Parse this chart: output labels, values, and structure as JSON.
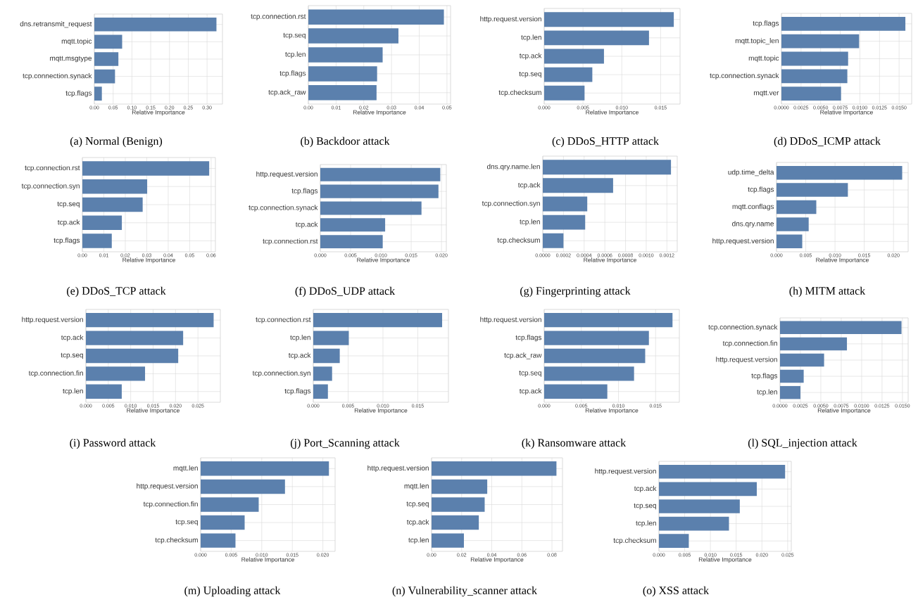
{
  "chart_data": [
    {
      "type": "bar",
      "orientation": "horizontal",
      "title": "(a) Normal (Benign)",
      "xlabel": "Relative Importance",
      "color": "#5b80ad",
      "grid": true,
      "categories": [
        "dns.retransmit_request",
        "mqtt.topic",
        "mqtt.msgtype",
        "tcp.connection.synack",
        "tcp.flags"
      ],
      "values": [
        0.325,
        0.074,
        0.064,
        0.055,
        0.02
      ],
      "xlim": [
        0,
        0.341
      ],
      "xticks": [
        {
          "value": 0,
          "label": "0.00"
        },
        {
          "value": 0.05,
          "label": "0.05"
        },
        {
          "value": 0.1,
          "label": "0.10"
        },
        {
          "value": 0.15,
          "label": "0.15"
        },
        {
          "value": 0.2,
          "label": "0.20"
        },
        {
          "value": 0.25,
          "label": "0.25"
        },
        {
          "value": 0.3,
          "label": "0.30"
        }
      ]
    },
    {
      "type": "bar",
      "orientation": "horizontal",
      "title": "(b) Backdoor attack",
      "xlabel": "Relative Importance",
      "color": "#5b80ad",
      "grid": true,
      "categories": [
        "tcp.connection.rst",
        "tcp.seq",
        "tcp.len",
        "tcp.flags",
        "tcp.ack_raw"
      ],
      "values": [
        0.0489,
        0.0325,
        0.0268,
        0.0248,
        0.0246
      ],
      "xlim": [
        0,
        0.0513
      ],
      "xticks": [
        {
          "value": 0,
          "label": "0.00"
        },
        {
          "value": 0.01,
          "label": "0.01"
        },
        {
          "value": 0.02,
          "label": "0.02"
        },
        {
          "value": 0.03,
          "label": "0.03"
        },
        {
          "value": 0.04,
          "label": "0.04"
        },
        {
          "value": 0.05,
          "label": "0.05"
        }
      ]
    },
    {
      "type": "bar",
      "orientation": "horizontal",
      "title": "(c) DDoS_HTTP attack",
      "xlabel": "Relative Importance",
      "color": "#5b80ad",
      "grid": true,
      "categories": [
        "http.request.version",
        "tcp.len",
        "tcp.ack",
        "tcp.seq",
        "tcp.checksum"
      ],
      "values": [
        0.0167,
        0.0135,
        0.0077,
        0.0062,
        0.0052
      ],
      "xlim": [
        0,
        0.0175
      ],
      "xticks": [
        {
          "value": 0,
          "label": "0.000"
        },
        {
          "value": 0.005,
          "label": "0.005"
        },
        {
          "value": 0.01,
          "label": "0.010"
        },
        {
          "value": 0.015,
          "label": "0.015"
        }
      ]
    },
    {
      "type": "bar",
      "orientation": "horizontal",
      "title": "(d) DDoS_ICMP attack",
      "xlabel": "Relative Importance",
      "color": "#5b80ad",
      "grid": true,
      "categories": [
        "tcp.flags",
        "mqtt.topic_len",
        "mqtt.topic",
        "tcp.connection.synack",
        "mqtt.ver"
      ],
      "values": [
        0.0158,
        0.0099,
        0.0085,
        0.0084,
        0.0076
      ],
      "xlim": [
        0,
        0.0166
      ],
      "xticks": [
        {
          "value": 0,
          "label": "0.0000"
        },
        {
          "value": 0.0025,
          "label": "0.0025"
        },
        {
          "value": 0.005,
          "label": "0.0050"
        },
        {
          "value": 0.0075,
          "label": "0.0075"
        },
        {
          "value": 0.01,
          "label": "0.0100"
        },
        {
          "value": 0.0125,
          "label": "0.0125"
        },
        {
          "value": 0.015,
          "label": "0.0150"
        }
      ]
    },
    {
      "type": "bar",
      "orientation": "horizontal",
      "title": "(e) DDoS_TCP attack",
      "xlabel": "Relative Importance",
      "color": "#5b80ad",
      "grid": true,
      "categories": [
        "tcp.connection.rst",
        "tcp.connection.syn",
        "tcp.seq",
        "tcp.ack",
        "tcp.flags"
      ],
      "values": [
        0.0591,
        0.0302,
        0.0281,
        0.0184,
        0.0137
      ],
      "xlim": [
        0,
        0.062
      ],
      "xticks": [
        {
          "value": 0,
          "label": "0.00"
        },
        {
          "value": 0.01,
          "label": "0.01"
        },
        {
          "value": 0.02,
          "label": "0.02"
        },
        {
          "value": 0.03,
          "label": "0.03"
        },
        {
          "value": 0.04,
          "label": "0.04"
        },
        {
          "value": 0.05,
          "label": "0.05"
        },
        {
          "value": 0.06,
          "label": "0.06"
        }
      ]
    },
    {
      "type": "bar",
      "orientation": "horizontal",
      "title": "(f) DDoS_UDP attack",
      "xlabel": "Relative Importance",
      "color": "#5b80ad",
      "grid": true,
      "categories": [
        "http.request.version",
        "tcp.flags",
        "tcp.connection.synack",
        "tcp.ack",
        "tcp.connection.rst"
      ],
      "values": [
        0.0198,
        0.0195,
        0.0167,
        0.0107,
        0.0103
      ],
      "xlim": [
        0,
        0.0208
      ],
      "xticks": [
        {
          "value": 0,
          "label": "0.000"
        },
        {
          "value": 0.005,
          "label": "0.005"
        },
        {
          "value": 0.01,
          "label": "0.010"
        },
        {
          "value": 0.015,
          "label": "0.015"
        },
        {
          "value": 0.02,
          "label": "0.020"
        }
      ]
    },
    {
      "type": "bar",
      "orientation": "horizontal",
      "title": "(g) Fingerprinting attack",
      "xlabel": "Relative Importance",
      "color": "#5b80ad",
      "grid": true,
      "categories": [
        "dns.qry.name.len",
        "tcp.ack",
        "tcp.connection.syn",
        "tcp.len",
        "tcp.checksum"
      ],
      "values": [
        0.00124,
        0.00068,
        0.00043,
        0.00041,
        0.0002
      ],
      "xlim": [
        0,
        0.0013
      ],
      "xticks": [
        {
          "value": 0,
          "label": "0.0000"
        },
        {
          "value": 0.0002,
          "label": "0.0002"
        },
        {
          "value": 0.0004,
          "label": "0.0004"
        },
        {
          "value": 0.0006,
          "label": "0.0006"
        },
        {
          "value": 0.0008,
          "label": "0.0008"
        },
        {
          "value": 0.001,
          "label": "0.0010"
        },
        {
          "value": 0.0012,
          "label": "0.0012"
        }
      ]
    },
    {
      "type": "bar",
      "orientation": "horizontal",
      "title": "(h) MITM attack",
      "xlabel": "Relative Importance",
      "color": "#5b80ad",
      "grid": true,
      "categories": [
        "udp.time_delta",
        "tcp.flags",
        "mqtt.conflags",
        "dns.qry.name",
        "http.request.version"
      ],
      "values": [
        0.0215,
        0.0122,
        0.0068,
        0.0055,
        0.0044
      ],
      "xlim": [
        0,
        0.0225
      ],
      "xticks": [
        {
          "value": 0,
          "label": "0.000"
        },
        {
          "value": 0.005,
          "label": "0.005"
        },
        {
          "value": 0.01,
          "label": "0.010"
        },
        {
          "value": 0.015,
          "label": "0.015"
        },
        {
          "value": 0.02,
          "label": "0.020"
        }
      ]
    },
    {
      "type": "bar",
      "orientation": "horizontal",
      "title": "(i) Password attack",
      "xlabel": "Relative Importance",
      "color": "#5b80ad",
      "grid": true,
      "categories": [
        "http.request.version",
        "tcp.ack",
        "tcp.seq",
        "tcp.connection.fin",
        "tcp.len"
      ],
      "values": [
        0.0285,
        0.0217,
        0.0206,
        0.0132,
        0.008
      ],
      "xlim": [
        0,
        0.03
      ],
      "xticks": [
        {
          "value": 0,
          "label": "0.000"
        },
        {
          "value": 0.005,
          "label": "0.005"
        },
        {
          "value": 0.01,
          "label": "0.010"
        },
        {
          "value": 0.015,
          "label": "0.015"
        },
        {
          "value": 0.02,
          "label": "0.020"
        },
        {
          "value": 0.025,
          "label": "0.025"
        }
      ]
    },
    {
      "type": "bar",
      "orientation": "horizontal",
      "title": "(j) Port_Scanning attack",
      "xlabel": "Relative Importance",
      "color": "#5b80ad",
      "grid": true,
      "categories": [
        "tcp.connection.rst",
        "tcp.len",
        "tcp.ack",
        "tcp.connection.syn",
        "tcp.flags"
      ],
      "values": [
        0.0185,
        0.0051,
        0.0038,
        0.0027,
        0.0021
      ],
      "xlim": [
        0,
        0.0194
      ],
      "xticks": [
        {
          "value": 0,
          "label": "0.000"
        },
        {
          "value": 0.005,
          "label": "0.005"
        },
        {
          "value": 0.01,
          "label": "0.010"
        },
        {
          "value": 0.015,
          "label": "0.015"
        }
      ]
    },
    {
      "type": "bar",
      "orientation": "horizontal",
      "title": "(k) Ransomware attack",
      "xlabel": "Relative Importance",
      "color": "#5b80ad",
      "grid": true,
      "categories": [
        "http.request.version",
        "tcp.flags",
        "tcp.ack_raw",
        "tcp.seq",
        "tcp.ack"
      ],
      "values": [
        0.0173,
        0.0141,
        0.0136,
        0.0121,
        0.0085
      ],
      "xlim": [
        0,
        0.0182
      ],
      "xticks": [
        {
          "value": 0,
          "label": "0.000"
        },
        {
          "value": 0.005,
          "label": "0.005"
        },
        {
          "value": 0.01,
          "label": "0.010"
        },
        {
          "value": 0.015,
          "label": "0.015"
        }
      ]
    },
    {
      "type": "bar",
      "orientation": "horizontal",
      "title": "(l) SQL_injection attack",
      "xlabel": "Relative Importance",
      "color": "#5b80ad",
      "grid": true,
      "categories": [
        "tcp.connection.synack",
        "tcp.connection.fin",
        "http.request.version",
        "tcp.flags",
        "tcp.len"
      ],
      "values": [
        0.0149,
        0.0082,
        0.0054,
        0.0029,
        0.0025
      ],
      "xlim": [
        0,
        0.0157
      ],
      "xticks": [
        {
          "value": 0,
          "label": "0.0000"
        },
        {
          "value": 0.0025,
          "label": "0.0025"
        },
        {
          "value": 0.005,
          "label": "0.0050"
        },
        {
          "value": 0.0075,
          "label": "0.0075"
        },
        {
          "value": 0.01,
          "label": "0.0100"
        },
        {
          "value": 0.0125,
          "label": "0.0125"
        },
        {
          "value": 0.015,
          "label": "0.0150"
        }
      ]
    },
    {
      "type": "bar",
      "orientation": "horizontal",
      "title": "(m) Uploading attack",
      "xlabel": "Relative Importance",
      "color": "#5b80ad",
      "grid": true,
      "categories": [
        "mqtt.len",
        "http.request.version",
        "tcp.connection.fin",
        "tcp.seq",
        "tcp.checksum"
      ],
      "values": [
        0.021,
        0.0138,
        0.0095,
        0.0072,
        0.0057
      ],
      "xlim": [
        0,
        0.022
      ],
      "xticks": [
        {
          "value": 0,
          "label": "0.000"
        },
        {
          "value": 0.005,
          "label": "0.005"
        },
        {
          "value": 0.01,
          "label": "0.010"
        },
        {
          "value": 0.015,
          "label": "0.015"
        },
        {
          "value": 0.02,
          "label": "0.020"
        }
      ]
    },
    {
      "type": "bar",
      "orientation": "horizontal",
      "title": "(n) Vulnerability_scanner attack",
      "xlabel": "Relative Importance",
      "color": "#5b80ad",
      "grid": true,
      "categories": [
        "http.request.version",
        "mqtt.len",
        "tcp.seq",
        "tcp.ack",
        "tcp.len"
      ],
      "values": [
        0.083,
        0.037,
        0.0353,
        0.0314,
        0.0215
      ],
      "xlim": [
        0,
        0.087
      ],
      "xticks": [
        {
          "value": 0,
          "label": "0.00"
        },
        {
          "value": 0.02,
          "label": "0.02"
        },
        {
          "value": 0.04,
          "label": "0.04"
        },
        {
          "value": 0.06,
          "label": "0.06"
        },
        {
          "value": 0.08,
          "label": "0.08"
        }
      ]
    },
    {
      "type": "bar",
      "orientation": "horizontal",
      "title": "(o) XSS attack",
      "xlabel": "Relative Importance",
      "color": "#5b80ad",
      "grid": true,
      "categories": [
        "http.request.version",
        "tcp.ack",
        "tcp.seq",
        "tcp.len",
        "tcp.checksum"
      ],
      "values": [
        0.0245,
        0.019,
        0.0157,
        0.0136,
        0.0058
      ],
      "xlim": [
        0,
        0.0257
      ],
      "xticks": [
        {
          "value": 0,
          "label": "0.000"
        },
        {
          "value": 0.005,
          "label": "0.005"
        },
        {
          "value": 0.01,
          "label": "0.010"
        },
        {
          "value": 0.015,
          "label": "0.015"
        },
        {
          "value": 0.02,
          "label": "0.020"
        },
        {
          "value": 0.025,
          "label": "0.025"
        }
      ]
    }
  ]
}
